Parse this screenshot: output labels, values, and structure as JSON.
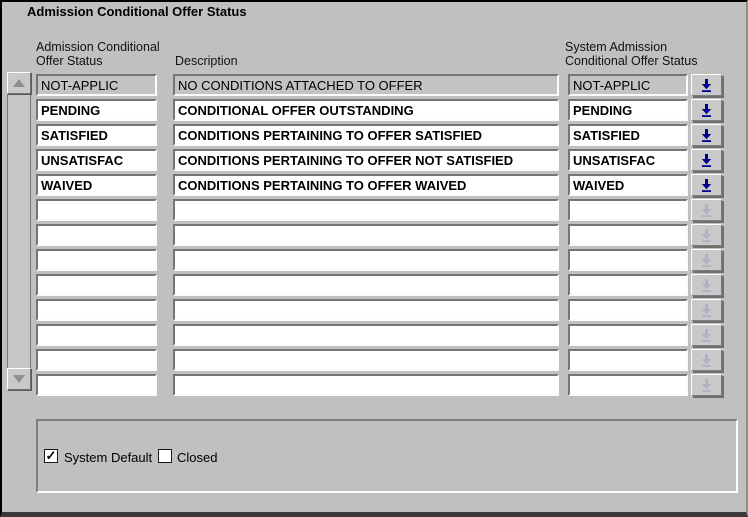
{
  "window": {
    "title": "Admission Conditional Offer Status"
  },
  "table": {
    "headers": {
      "offer_status_line1": "Admission Conditional",
      "offer_status_line2": "Offer Status",
      "description": "Description",
      "system_status_line1": "System Admission",
      "system_status_line2": "Conditional Offer Status"
    },
    "rows": [
      {
        "offer_status": "NOT-APPLIC",
        "description": "NO CONDITIONS ATTACHED TO OFFER",
        "system_status": "NOT-APPLIC",
        "readonly": true,
        "button_enabled": true
      },
      {
        "offer_status": "PENDING",
        "description": "CONDITIONAL OFFER OUTSTANDING",
        "system_status": "PENDING",
        "readonly": false,
        "button_enabled": true
      },
      {
        "offer_status": "SATISFIED",
        "description": "CONDITIONS PERTAINING TO OFFER SATISFIED",
        "system_status": "SATISFIED",
        "readonly": false,
        "button_enabled": true
      },
      {
        "offer_status": "UNSATISFAC",
        "description": "CONDITIONS PERTAINING TO OFFER NOT SATISFIED",
        "system_status": "UNSATISFAC",
        "readonly": false,
        "button_enabled": true
      },
      {
        "offer_status": "WAIVED",
        "description": "CONDITIONS PERTAINING TO OFFER WAIVED",
        "system_status": "WAIVED",
        "readonly": false,
        "button_enabled": true
      },
      {
        "offer_status": "",
        "description": "",
        "system_status": "",
        "readonly": false,
        "button_enabled": false
      },
      {
        "offer_status": "",
        "description": "",
        "system_status": "",
        "readonly": false,
        "button_enabled": false
      },
      {
        "offer_status": "",
        "description": "",
        "system_status": "",
        "readonly": false,
        "button_enabled": false
      },
      {
        "offer_status": "",
        "description": "",
        "system_status": "",
        "readonly": false,
        "button_enabled": false
      },
      {
        "offer_status": "",
        "description": "",
        "system_status": "",
        "readonly": false,
        "button_enabled": false
      },
      {
        "offer_status": "",
        "description": "",
        "system_status": "",
        "readonly": false,
        "button_enabled": false
      },
      {
        "offer_status": "",
        "description": "",
        "system_status": "",
        "readonly": false,
        "button_enabled": false
      },
      {
        "offer_status": "",
        "description": "",
        "system_status": "",
        "readonly": false,
        "button_enabled": false
      }
    ],
    "row_button_icon": "down-arrow-to-line-icon"
  },
  "scrollbar": {
    "up_icon": "up-triangle",
    "down_icon": "down-triangle"
  },
  "footer": {
    "system_default": {
      "label": "System Default",
      "checked": true
    },
    "closed": {
      "label": "Closed",
      "checked": false
    },
    "check_glyph": "✓"
  },
  "colors": {
    "background": "#c0c0c0",
    "field_white": "#ffffff",
    "field_readonly": "#c3c3c3",
    "arrow_enabled": "#00008b",
    "arrow_disabled": "#9c9cc4",
    "text": "#000000"
  }
}
